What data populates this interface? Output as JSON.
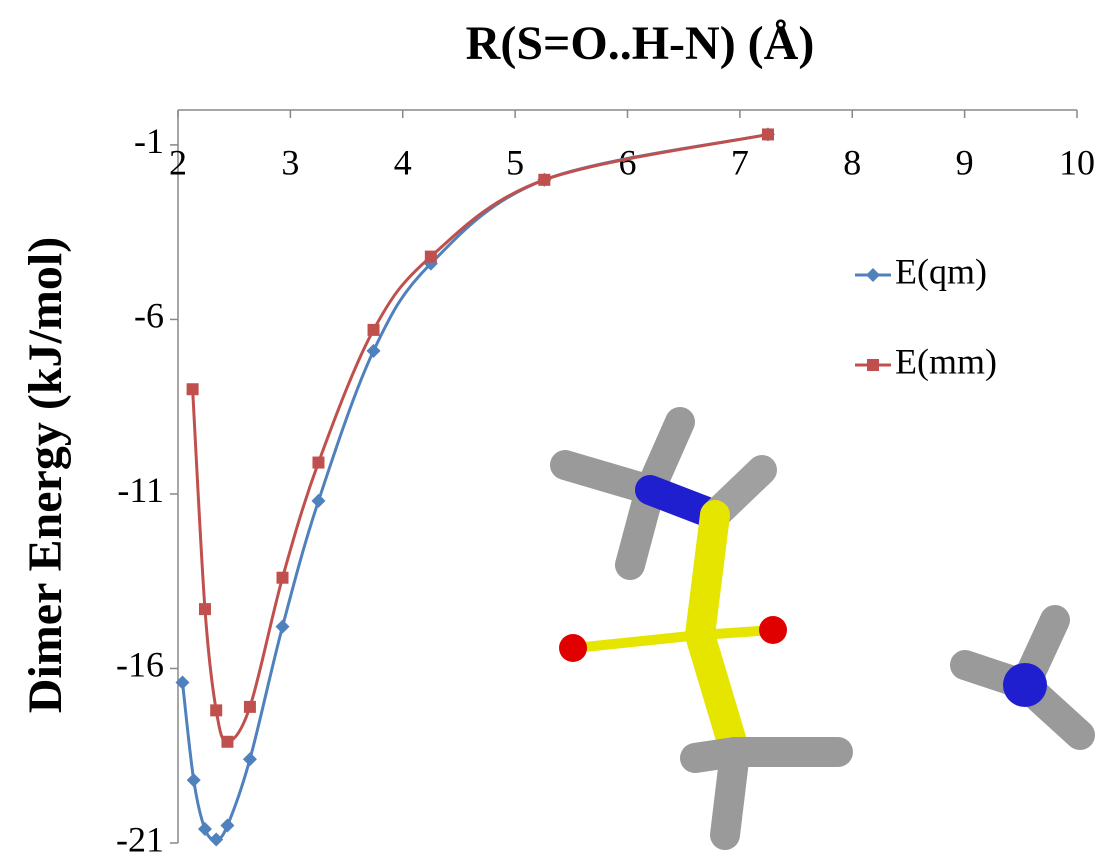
{
  "chart_data": {
    "type": "line",
    "title": "R(S=O..H-N) (Å)",
    "y_label": "Dimer Energy (kJ/mol)",
    "xlim": [
      2,
      10
    ],
    "xticks": [
      2,
      3,
      4,
      5,
      6,
      7,
      8,
      9,
      10
    ],
    "ylim": [
      -21,
      0
    ],
    "yticks": [
      -1,
      -6,
      -11,
      -16,
      -21
    ],
    "legend": "right",
    "series": [
      {
        "name": "E(qm)",
        "color": "#4f81bd",
        "marker": "diamond",
        "x": [
          2.04,
          2.14,
          2.24,
          2.34,
          2.44,
          2.64,
          2.93,
          3.25,
          3.74,
          4.25,
          5.26,
          7.25
        ],
        "values": [
          -16.4,
          -19.2,
          -20.6,
          -20.9,
          -20.5,
          -18.6,
          -14.8,
          -11.2,
          -6.9,
          -4.4,
          -2.0,
          -0.7
        ]
      },
      {
        "name": "E(mm)",
        "color": "#c0504d",
        "marker": "square",
        "x": [
          2.13,
          2.24,
          2.34,
          2.44,
          2.64,
          2.93,
          3.25,
          3.74,
          4.25,
          5.26,
          7.25
        ],
        "values": [
          -8.0,
          -14.3,
          -17.2,
          -18.1,
          -17.1,
          -13.4,
          -10.1,
          -6.3,
          -4.2,
          -2.0,
          -0.7
        ]
      }
    ]
  }
}
